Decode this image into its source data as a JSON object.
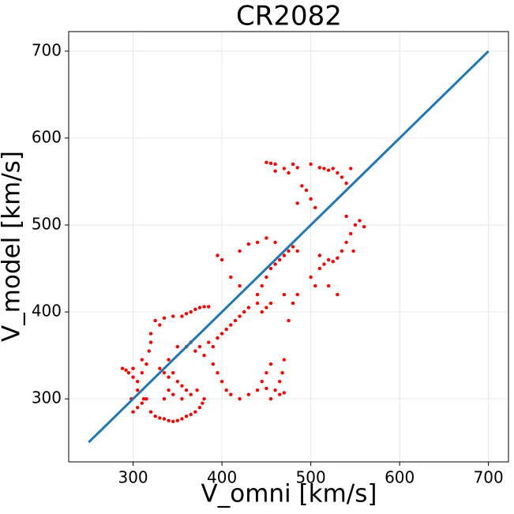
{
  "chart_data": {
    "type": "scatter",
    "title": "CR2082",
    "x_label": "V_omni [km/s]",
    "y_label": "V_model [km/s]",
    "xlim": [
      227.5,
      722.5
    ],
    "ylim": [
      227.5,
      722.5
    ],
    "xticks": [
      300,
      400,
      500,
      600,
      700
    ],
    "yticks": [
      300,
      400,
      500,
      600,
      700
    ],
    "grid": true,
    "series": [
      {
        "type": "scatter",
        "color": "#ff0000",
        "x": [
          300,
          305,
          310,
          315,
          320,
          325,
          330,
          335,
          340,
          345,
          350,
          355,
          360,
          365,
          370,
          375,
          378,
          380,
          372,
          365,
          355,
          345,
          340,
          335,
          288,
          292,
          295,
          300,
          305,
          310,
          315,
          318,
          320,
          310,
          300,
          305,
          298,
          312,
          325,
          335,
          345,
          355,
          360,
          365,
          370,
          375,
          380,
          385,
          350,
          330,
          320,
          360,
          365,
          370,
          375,
          380,
          385,
          390,
          395,
          400,
          405,
          410,
          415,
          420,
          390,
          395,
          400,
          405,
          410,
          420,
          430,
          440,
          450,
          460,
          465,
          470,
          455,
          445,
          450,
          455,
          425,
          430,
          440,
          445,
          450,
          455,
          440,
          445,
          450,
          455,
          460,
          465,
          470,
          475,
          480,
          485,
          460,
          450,
          440,
          430,
          420,
          410,
          400,
          395,
          420,
          470,
          475,
          480,
          485,
          500,
          505,
          510,
          515,
          520,
          525,
          530,
          535,
          540,
          545,
          550,
          555,
          560,
          548,
          540,
          530,
          520,
          510,
          450,
          455,
          460,
          470,
          475,
          480,
          485,
          490,
          495,
          500,
          505,
          500,
          510,
          515,
          520,
          525,
          530,
          535,
          540,
          545,
          460,
          485,
          470,
          468,
          465,
          330,
          335,
          340,
          345,
          350,
          355,
          360,
          340
        ],
        "values": [
          285,
          290,
          295,
          300,
          285,
          280,
          278,
          277,
          275,
          274,
          275,
          277,
          280,
          282,
          285,
          290,
          295,
          300,
          310,
          305,
          300,
          305,
          310,
          300,
          335,
          333,
          330,
          325,
          320,
          330,
          340,
          355,
          365,
          345,
          335,
          310,
          300,
          300,
          390,
          393,
          395,
          395,
          398,
          400,
          403,
          405,
          406,
          406,
          360,
          385,
          375,
          360,
          365,
          355,
          360,
          350,
          365,
          360,
          370,
          375,
          380,
          385,
          390,
          395,
          340,
          330,
          320,
          310,
          305,
          300,
          305,
          310,
          312,
          310,
          305,
          307,
          300,
          320,
          330,
          340,
          400,
          405,
          410,
          400,
          405,
          410,
          420,
          430,
          440,
          450,
          455,
          460,
          465,
          470,
          475,
          470,
          480,
          485,
          480,
          478,
          470,
          440,
          460,
          465,
          430,
          420,
          390,
          410,
          420,
          440,
          430,
          450,
          455,
          460,
          458,
          462,
          470,
          480,
          490,
          500,
          505,
          498,
          470,
          510,
          420,
          430,
          465,
          572,
          571,
          570,
          565,
          560,
          570,
          566,
          545,
          540,
          530,
          520,
          570,
          566,
          565,
          563,
          565,
          560,
          555,
          548,
          565,
          562,
          525,
          345,
          330,
          320,
          335,
          330,
          325,
          330,
          320,
          315,
          310,
          345
        ]
      },
      {
        "type": "line",
        "color": "#1f77b4",
        "x": [
          250,
          700
        ],
        "values": [
          250,
          700
        ]
      }
    ]
  }
}
